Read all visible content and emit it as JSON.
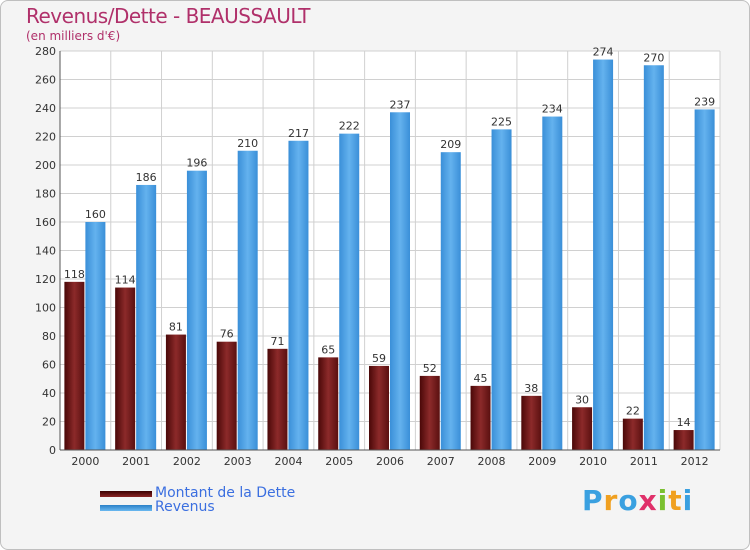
{
  "chart_data": {
    "type": "bar",
    "title": "Revenus/Dette - BEAUSSAULT",
    "subtitle": "(en milliers d'€)",
    "categories": [
      "2000",
      "2001",
      "2002",
      "2003",
      "2004",
      "2005",
      "2006",
      "2007",
      "2008",
      "2009",
      "2010",
      "2011",
      "2012"
    ],
    "series": [
      {
        "name": "Montant de la Dette",
        "color": "#7a1c1c",
        "values": [
          118,
          114,
          81,
          76,
          71,
          65,
          59,
          52,
          45,
          38,
          30,
          22,
          14
        ]
      },
      {
        "name": "Revenus",
        "color": "#4a9de0",
        "values": [
          160,
          186,
          196,
          210,
          217,
          222,
          237,
          209,
          225,
          234,
          274,
          270,
          239
        ]
      }
    ],
    "ylim": [
      0,
      280
    ],
    "yticks": [
      0,
      20,
      40,
      60,
      80,
      100,
      120,
      140,
      160,
      180,
      200,
      220,
      240,
      260,
      280
    ],
    "grid": true,
    "legend_position": "bottom-left"
  },
  "legend": {
    "items": [
      {
        "label": "Montant de la Dette",
        "color": "#7a1c1c"
      },
      {
        "label": "Revenus",
        "color": "#4a9de0"
      }
    ]
  },
  "brand": {
    "letters": [
      "P",
      "r",
      "o",
      "x",
      "i",
      "t",
      "i"
    ],
    "colors": [
      "#3aa0e0",
      "#f0a020",
      "#3aa0e0",
      "#e0306a",
      "#7ac030",
      "#f0a020",
      "#3aa0e0"
    ]
  }
}
